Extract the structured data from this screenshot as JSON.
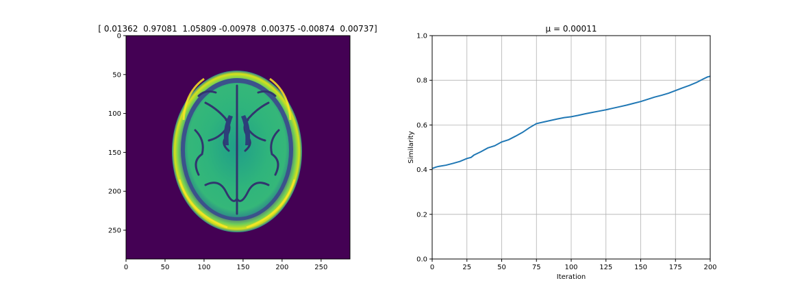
{
  "chart_data": [
    {
      "type": "heatmap",
      "title": "[ 0.01362  0.97081  1.05809 -0.00978  0.00375 -0.00874  0.00737]",
      "colormap": "viridis",
      "content": "axial brain MRI slice",
      "image_size": [
        287,
        287
      ],
      "xlim": [
        0,
        287
      ],
      "ylim": [
        287,
        0
      ],
      "x_ticks": [
        0,
        50,
        100,
        150,
        200,
        250
      ],
      "y_ticks": [
        0,
        50,
        100,
        150,
        200,
        250
      ],
      "grid": false
    },
    {
      "type": "line",
      "title": "μ = 0.00011",
      "xlabel": "Iteration",
      "ylabel": "Similarity",
      "xlim": [
        0,
        200
      ],
      "ylim": [
        0,
        1.0
      ],
      "x_ticks": [
        0,
        25,
        50,
        75,
        100,
        125,
        150,
        175,
        200
      ],
      "y_ticks": [
        0.0,
        0.2,
        0.4,
        0.6,
        0.8,
        1.0
      ],
      "grid": true,
      "line_color": "#1f77b4",
      "series": [
        {
          "x": [
            0,
            3,
            5,
            10,
            15,
            20,
            25,
            28,
            30,
            35,
            40,
            45,
            50,
            55,
            60,
            65,
            70,
            75,
            80,
            85,
            90,
            95,
            100,
            105,
            110,
            115,
            120,
            125,
            130,
            135,
            140,
            145,
            150,
            155,
            160,
            165,
            170,
            175,
            180,
            185,
            190,
            195,
            198,
            200
          ],
          "y": [
            0.405,
            0.412,
            0.415,
            0.42,
            0.428,
            0.437,
            0.45,
            0.455,
            0.465,
            0.48,
            0.497,
            0.507,
            0.524,
            0.534,
            0.55,
            0.567,
            0.588,
            0.606,
            0.613,
            0.62,
            0.627,
            0.633,
            0.637,
            0.643,
            0.65,
            0.656,
            0.662,
            0.668,
            0.675,
            0.682,
            0.689,
            0.697,
            0.705,
            0.715,
            0.725,
            0.733,
            0.742,
            0.754,
            0.766,
            0.777,
            0.79,
            0.806,
            0.815,
            0.818
          ]
        }
      ]
    }
  ]
}
